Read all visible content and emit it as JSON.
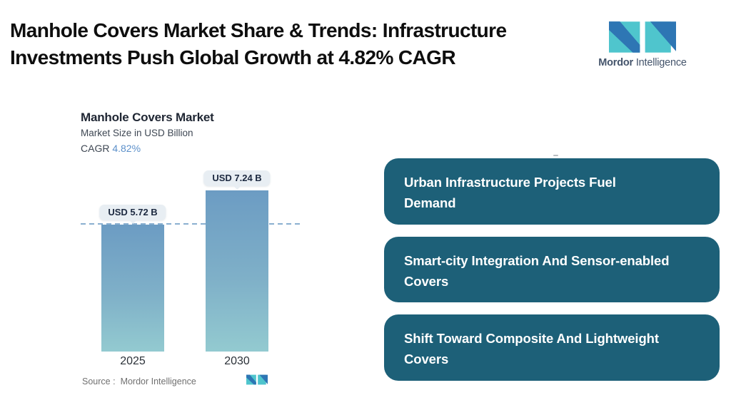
{
  "header": {
    "title": "Manhole Covers Market Share & Trends: Infrastructure\nInvestments Push Global Growth at 4.82% CAGR",
    "brand": {
      "bold": "Mordor",
      "regular": "Intelligence"
    }
  },
  "chart": {
    "title": "Manhole Covers Market",
    "subtitle": "Market Size in USD Billion",
    "cagr_label": "CAGR ",
    "cagr_value": "4.82%",
    "source_label": "Source :",
    "source_value": "Mordor Intelligence"
  },
  "chart_data": {
    "type": "bar",
    "title": "Manhole Covers Market",
    "subtitle": "Market Size in USD Billion",
    "unit": "USD Billion",
    "cagr": "4.82%",
    "categories": [
      "2025",
      "2030"
    ],
    "values": [
      5.72,
      7.24
    ],
    "data_labels": [
      "USD 5.72 B",
      "USD 7.24 B"
    ],
    "reference_line": {
      "at_value": 5.72,
      "style": "dashed"
    },
    "ylim": [
      0,
      7.9
    ],
    "grid": false,
    "legend": false
  },
  "highlights": [
    "Urban Infrastructure Projects Fuel\nDemand",
    "Smart-city Integration And Sensor-enabled\nCovers",
    "Shift Toward Composite And Lightweight\nCovers"
  ],
  "colors": {
    "highlight_box": "#1d6078",
    "bar_gradient_top": "#6c9cc3",
    "bar_gradient_bottom": "#93cad0",
    "dashed_line": "#8aafd0",
    "cagr_value": "#5c90ca",
    "pill_background": "#e8eef3",
    "logo_teal": "#4fc5cd",
    "logo_blue": "#2e76b4"
  }
}
